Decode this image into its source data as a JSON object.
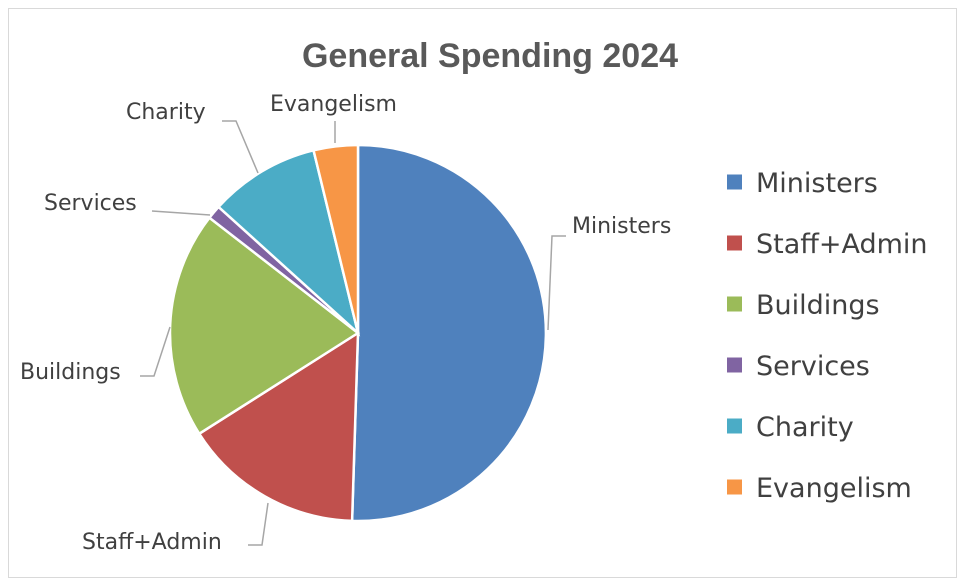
{
  "chart_data": {
    "type": "pie",
    "title": "General Spending 2024",
    "categories": [
      "Ministers",
      "Staff+Admin",
      "Buildings",
      "Services",
      "Charity",
      "Evangelism"
    ],
    "values": [
      50.5,
      15.5,
      19.5,
      1.2,
      9.5,
      3.8
    ],
    "unit": "percent of total (estimated from slice angles)",
    "colors": [
      "#4f81bd",
      "#c0504d",
      "#9bbb59",
      "#8064a2",
      "#4bacc6",
      "#f79646"
    ],
    "data_labels": "category name with leader line",
    "legend_position": "right"
  }
}
